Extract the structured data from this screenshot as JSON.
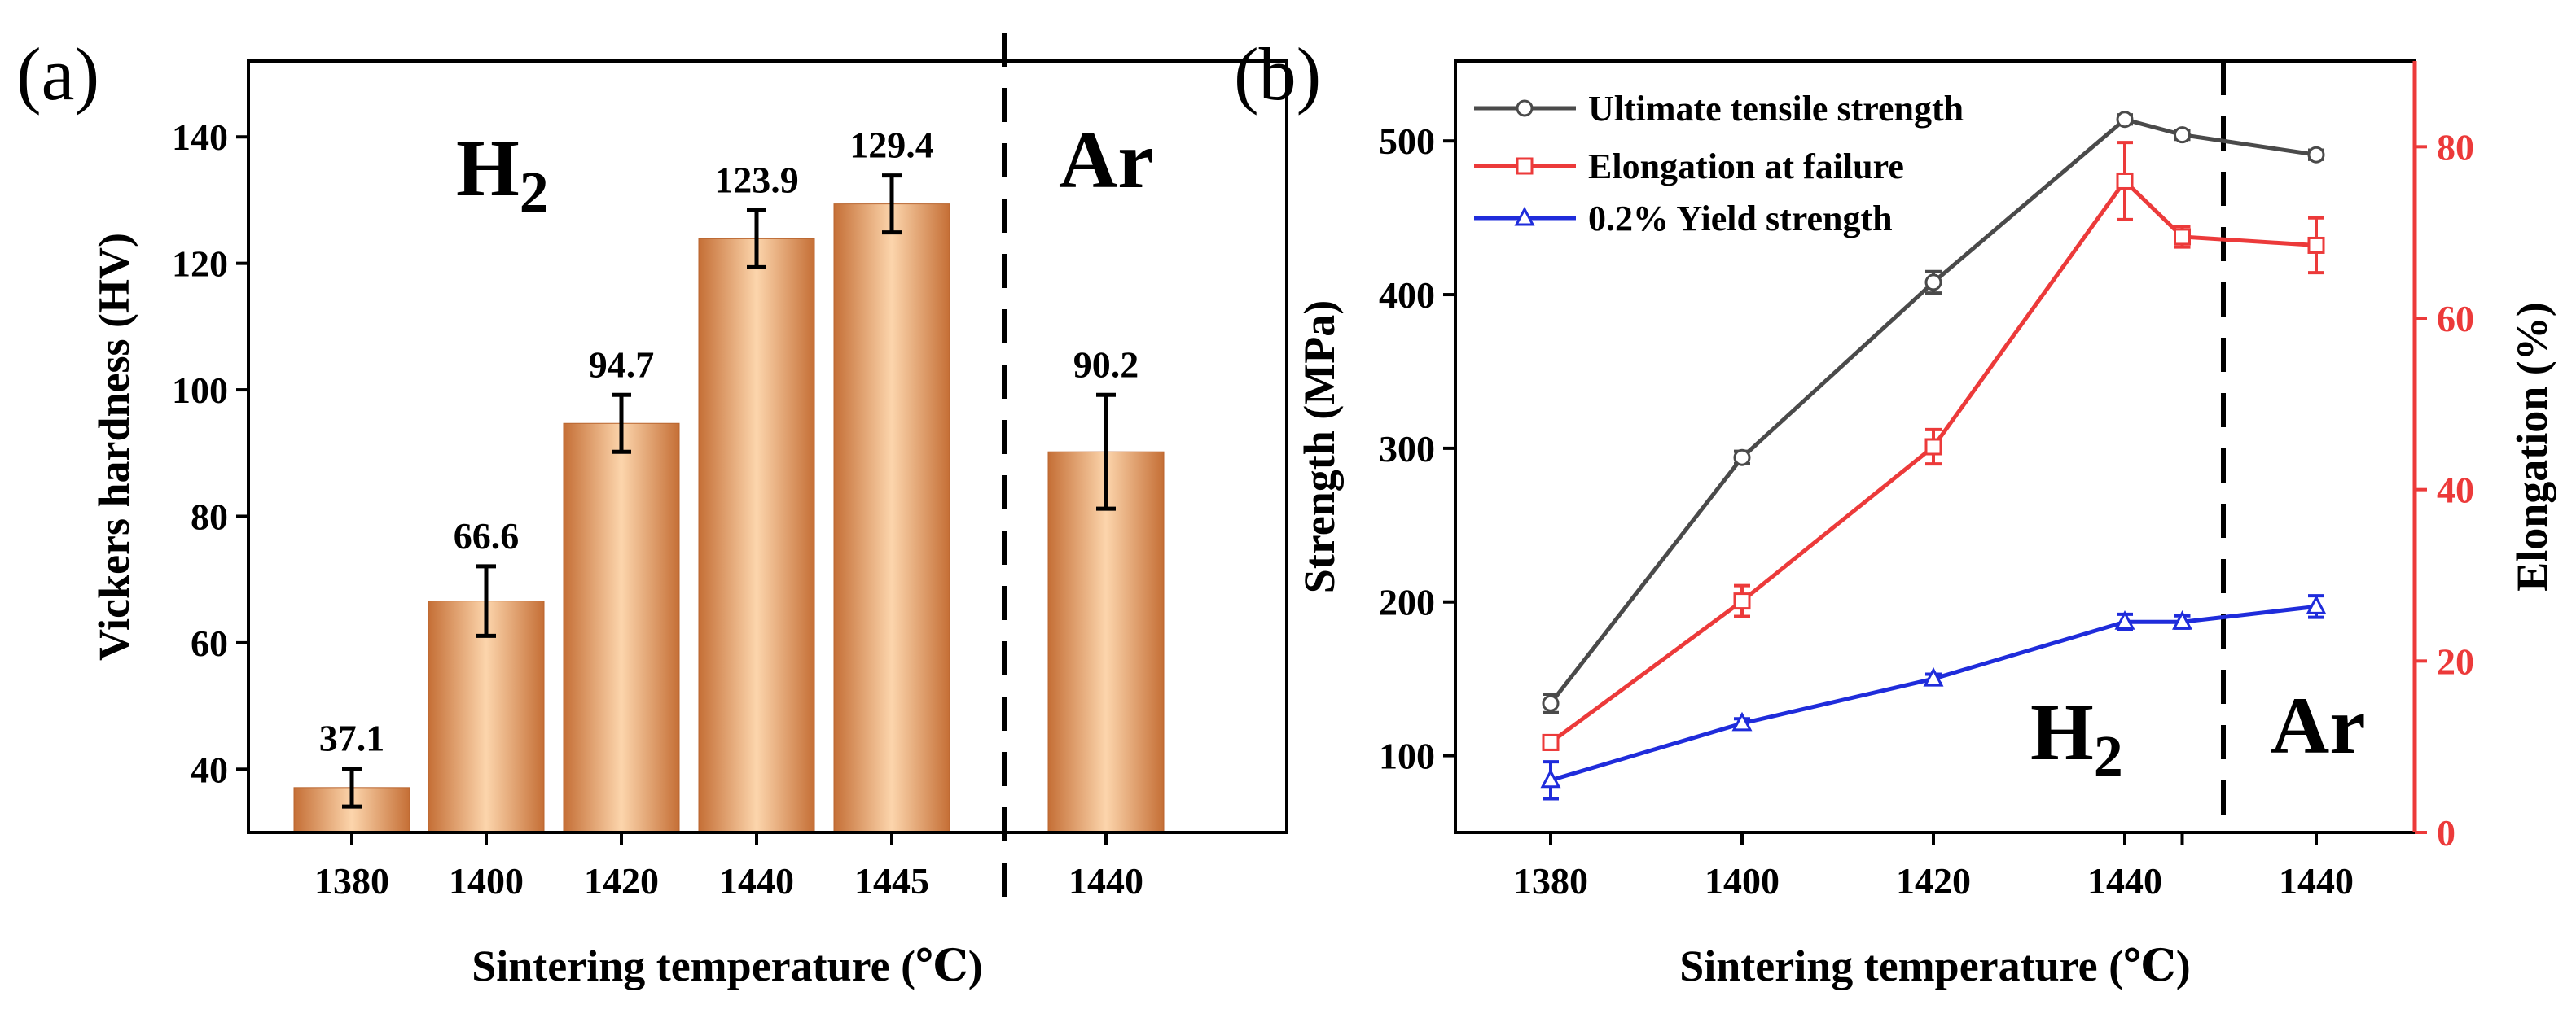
{
  "chart_data": [
    {
      "panel_label": "(a)",
      "type": "bar",
      "categories": [
        "1380",
        "1400",
        "1420",
        "1440",
        "1445",
        "1440"
      ],
      "values": [
        37.1,
        66.6,
        94.7,
        123.9,
        129.4,
        90.2
      ],
      "value_labels": [
        "37.1",
        "66.6",
        "94.7",
        "123.9",
        "129.4",
        "90.2"
      ],
      "error": [
        3,
        5.5,
        4.5,
        4.5,
        4.5,
        9
      ],
      "ylim": [
        30,
        152
      ],
      "yticks": [
        "40",
        "60",
        "80",
        "100",
        "120",
        "140"
      ],
      "ylabel": "Vickers hardness (HV)",
      "xlabel": "Sintering temperature (℃)",
      "regions": [
        {
          "label": "H",
          "sub": "2"
        },
        {
          "label": "Ar"
        }
      ],
      "bar_color": "#c8733a",
      "bar_highlight": "#fbd2a8"
    },
    {
      "panel_label": "(b)",
      "type": "line",
      "categories": [
        "1380",
        "1400",
        "1420",
        "1440",
        "",
        "1440"
      ],
      "x": [
        0,
        1,
        2,
        3,
        3.3,
        4
      ],
      "ylabel": "Strength (MPa)",
      "y2label": "Elongation (%)",
      "xlabel": "Sintering temperature (℃)",
      "ylim": [
        50,
        552
      ],
      "yticks": [
        "100",
        "200",
        "300",
        "400",
        "500"
      ],
      "y2lim": [
        0,
        90
      ],
      "y2ticks": [
        "0",
        "20",
        "40",
        "60",
        "80"
      ],
      "regions": [
        {
          "label": "H",
          "sub": "2"
        },
        {
          "label": "Ar"
        }
      ],
      "series": [
        {
          "name": "Ultimate tensile strength",
          "axis": "left",
          "marker": "circle",
          "color": "#4a4a4a",
          "values": [
            134,
            294,
            408,
            514,
            504,
            491
          ],
          "error": [
            6,
            4,
            7,
            3,
            3,
            3
          ]
        },
        {
          "name": "Elongation at failure",
          "axis": "right",
          "marker": "square",
          "color": "#ec3a3a",
          "values": [
            10.5,
            27,
            45,
            76,
            69.5,
            68.5
          ],
          "error": [
            0.8,
            1.8,
            2,
            4.5,
            1.2,
            3.2
          ]
        },
        {
          "name": "0.2% Yield strength",
          "axis": "left",
          "marker": "triangle",
          "color": "#1f2cdb",
          "values": [
            84,
            121,
            150,
            187,
            187,
            197
          ],
          "error": [
            12,
            3,
            3,
            5,
            4,
            7
          ]
        }
      ]
    }
  ]
}
